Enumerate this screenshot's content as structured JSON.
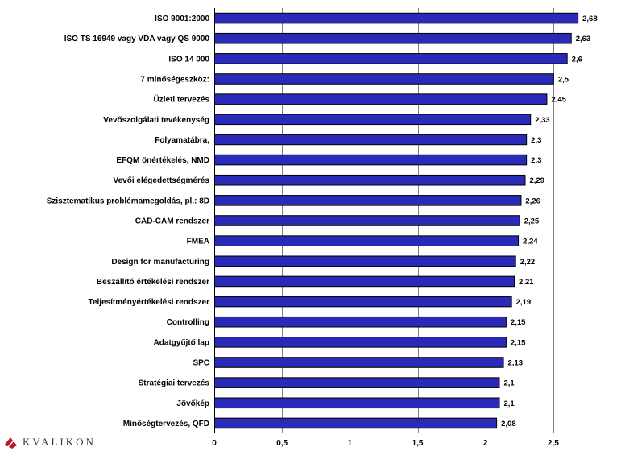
{
  "logo": {
    "text": "KVALIKON"
  },
  "chart_data": {
    "type": "bar",
    "orientation": "horizontal",
    "categories": [
      "ISO 9001:2000",
      "ISO TS 16949 vagy VDA vagy QS 9000",
      "ISO 14 000",
      "7 minőségeszköz:",
      "Üzleti tervezés",
      "Vevőszolgálati tevékenység",
      "Folyamatábra,",
      "EFQM önértékelés, NMD",
      "Vevői elégedettségmérés",
      "Szisztematikus problémamegoldás, pl.: 8D",
      "CAD-CAM rendszer",
      "FMEA",
      "Design for manufacturing",
      "Beszállító értékelési rendszer",
      "Teljesítményértékelési rendszer",
      "Controlling",
      "Adatgyűjtő lap",
      "SPC",
      "Stratégiai tervezés",
      "Jövőkép",
      "Minőségtervezés, QFD"
    ],
    "values": [
      2.68,
      2.63,
      2.6,
      2.5,
      2.45,
      2.33,
      2.3,
      2.3,
      2.29,
      2.26,
      2.25,
      2.24,
      2.22,
      2.21,
      2.19,
      2.15,
      2.15,
      2.13,
      2.1,
      2.1,
      2.08
    ],
    "value_labels": [
      "2,68",
      "2,63",
      "2,6",
      "2,5",
      "2,45",
      "2,33",
      "2,3",
      "2,3",
      "2,29",
      "2,26",
      "2,25",
      "2,24",
      "2,22",
      "2,21",
      "2,19",
      "2,15",
      "2,15",
      "2,13",
      "2,1",
      "2,1",
      "2,08"
    ],
    "xticks": [
      0,
      0.5,
      1,
      1.5,
      2,
      2.5
    ],
    "xtick_labels": [
      "0",
      "0,5",
      "1",
      "1,5",
      "2",
      "2,5"
    ],
    "xlim": [
      0,
      3
    ],
    "grid": true,
    "colors": {
      "bar": "#2a2ab8",
      "bar_edge": "#000000",
      "grid": "#808080"
    }
  }
}
